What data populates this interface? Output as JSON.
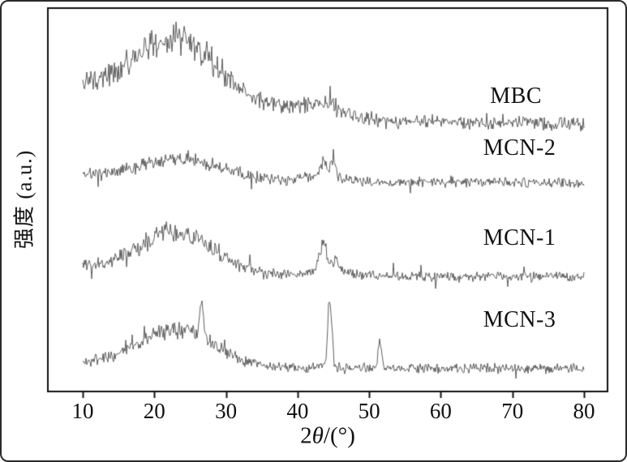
{
  "figure": {
    "background": "#ffffff",
    "border_color": "#2b2b2b"
  },
  "chart_data": {
    "type": "line",
    "title": "",
    "xlabel": "2θ/(°)",
    "xlabel_parts": {
      "pre": "2",
      "theta": "θ",
      "unit": "/(°)"
    },
    "ylabel": "强度 (a.u.)",
    "xlim": [
      10,
      80
    ],
    "x_ticks": [
      10,
      20,
      30,
      40,
      50,
      60,
      70,
      80
    ],
    "y_ticks": [],
    "grid": false,
    "legend_position": "none",
    "line_color": "#4d4d4d",
    "axis_color": "#111111",
    "text_color": "#111111",
    "series": [
      {
        "name": "MBC",
        "seed": 7,
        "baseline": 0.695,
        "noise": 0.02,
        "noise_signal_scale": 1.0,
        "left_decay": {
          "height": 0.11,
          "tau": 18
        },
        "peaks": [
          {
            "center": 22.5,
            "sigma": 5.2,
            "height": 0.13,
            "type": "broad"
          },
          {
            "center": 27.0,
            "sigma": 8.0,
            "height": 0.05,
            "type": "broad"
          },
          {
            "center": 43.5,
            "sigma": 3.0,
            "height": 0.032,
            "type": "broad"
          }
        ],
        "label": {
          "text": "MBC",
          "x": 70.5,
          "y": 0.77
        }
      },
      {
        "name": "MCN-2",
        "seed": 21,
        "baseline": 0.545,
        "noise": 0.016,
        "noise_signal_scale": 1.2,
        "left_decay": {
          "height": 0.02,
          "tau": 15
        },
        "peaks": [
          {
            "center": 24.0,
            "sigma": 5.5,
            "height": 0.055,
            "type": "broad"
          },
          {
            "center": 43.5,
            "sigma": 2.2,
            "height": 0.018,
            "type": "broad"
          },
          {
            "center": 43.6,
            "sigma": 0.35,
            "height": 0.035,
            "type": "sharp"
          },
          {
            "center": 44.9,
            "sigma": 0.3,
            "height": 0.05,
            "type": "sharp"
          }
        ],
        "label": {
          "text": "MCN-2",
          "x": 71,
          "y": 0.635
        }
      },
      {
        "name": "MCN-1",
        "seed": 33,
        "baseline": 0.3,
        "noise": 0.016,
        "noise_signal_scale": 1.4,
        "left_decay": {
          "height": 0.025,
          "tau": 15
        },
        "peaks": [
          {
            "center": 23.0,
            "sigma": 5.2,
            "height": 0.105,
            "type": "broad"
          },
          {
            "center": 43.8,
            "sigma": 2.0,
            "height": 0.02,
            "type": "broad"
          },
          {
            "center": 43.6,
            "sigma": 0.5,
            "height": 0.065,
            "type": "sharp"
          },
          {
            "center": 45.4,
            "sigma": 0.4,
            "height": 0.028,
            "type": "sharp"
          }
        ],
        "label": {
          "text": "MCN-1",
          "x": 71,
          "y": 0.4
        }
      },
      {
        "name": "MCN-3",
        "seed": 54,
        "baseline": 0.06,
        "noise": 0.015,
        "noise_signal_scale": 1.2,
        "left_decay": {
          "height": 0.012,
          "tau": 15
        },
        "peaks": [
          {
            "center": 23.0,
            "sigma": 5.3,
            "height": 0.095,
            "type": "broad"
          },
          {
            "center": 26.6,
            "sigma": 0.28,
            "height": 0.09,
            "type": "sharp"
          },
          {
            "center": 44.5,
            "sigma": 0.3,
            "height": 0.17,
            "type": "sharp"
          },
          {
            "center": 51.5,
            "sigma": 0.28,
            "height": 0.06,
            "type": "sharp"
          }
        ],
        "label": {
          "text": "MCN-3",
          "x": 71,
          "y": 0.185
        }
      }
    ]
  }
}
